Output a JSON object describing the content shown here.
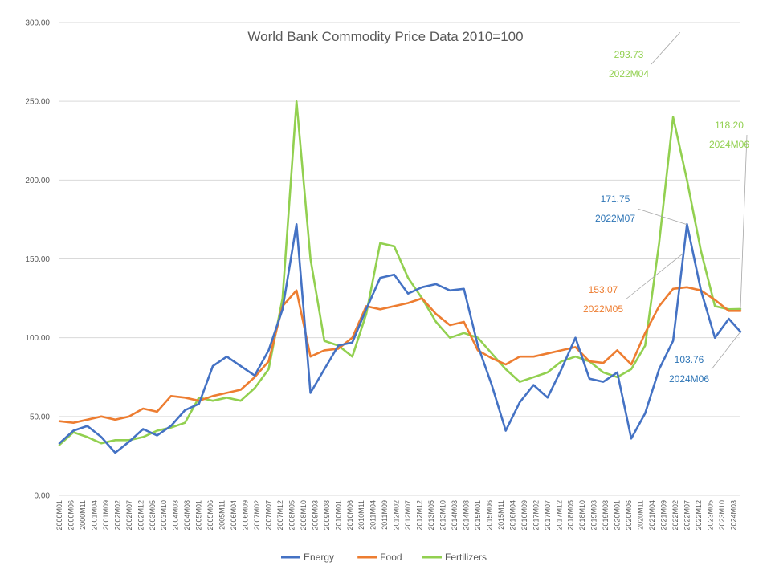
{
  "chart_data": {
    "type": "line",
    "title": "World Bank Commodity Price Data 2010=100",
    "xlabel": "",
    "ylabel": "",
    "ylim": [
      0,
      300
    ],
    "yticks": [
      "0.00",
      "50.00",
      "100.00",
      "150.00",
      "200.00",
      "250.00",
      "300.00"
    ],
    "grid": true,
    "legend_position": "bottom",
    "xtick_labels": [
      "2000M01",
      "2000M06",
      "2000M11",
      "2001M04",
      "2001M09",
      "2002M02",
      "2002M07",
      "2002M12",
      "2003M05",
      "2003M10",
      "2004M03",
      "2004M08",
      "2005M01",
      "2005M06",
      "2005M11",
      "2006M04",
      "2006M09",
      "2007M02",
      "2007M07",
      "2007M12",
      "2008M05",
      "2008M10",
      "2009M03",
      "2009M08",
      "2010M01",
      "2010M06",
      "2010M11",
      "2011M04",
      "2011M09",
      "2012M02",
      "2012M07",
      "2012M12",
      "2013M05",
      "2013M10",
      "2014M03",
      "2014M08",
      "2015M01",
      "2015M06",
      "2015M11",
      "2016M04",
      "2016M09",
      "2017M02",
      "2017M07",
      "2017M12",
      "2018M05",
      "2018M10",
      "2019M03",
      "2019M08",
      "2020M01",
      "2020M06",
      "2020M11",
      "2021M04",
      "2021M09",
      "2022M02",
      "2022M07",
      "2022M12",
      "2023M05",
      "2023M10",
      "2024M03"
    ],
    "x": [
      "2000M01",
      "2000M07",
      "2001M01",
      "2001M07",
      "2002M01",
      "2002M07",
      "2003M01",
      "2003M07",
      "2004M01",
      "2004M07",
      "2005M01",
      "2005M07",
      "2006M01",
      "2006M07",
      "2007M01",
      "2007M07",
      "2008M01",
      "2008M07",
      "2009M01",
      "2009M07",
      "2010M01",
      "2010M07",
      "2011M01",
      "2011M07",
      "2012M01",
      "2012M07",
      "2013M01",
      "2013M07",
      "2014M01",
      "2014M07",
      "2015M01",
      "2015M07",
      "2016M01",
      "2016M07",
      "2017M01",
      "2017M07",
      "2018M01",
      "2018M07",
      "2019M01",
      "2019M07",
      "2020M01",
      "2020M07",
      "2021M01",
      "2021M07",
      "2022M01",
      "2022M07",
      "2023M01",
      "2023M07",
      "2024M01",
      "2024M06"
    ],
    "series": [
      {
        "name": "Energy",
        "color": "#4472C4",
        "values": [
          33,
          41,
          44,
          37,
          27,
          34,
          42,
          38,
          44,
          54,
          58,
          82,
          88,
          82,
          76,
          92,
          118,
          172,
          65,
          80,
          95,
          97,
          118,
          138,
          140,
          128,
          132,
          134,
          130,
          131,
          95,
          70,
          41,
          59,
          70,
          62,
          80,
          100,
          74,
          72,
          78,
          36,
          52,
          80,
          98,
          172,
          130,
          100,
          112,
          103.76
        ]
      },
      {
        "name": "Food",
        "color": "#ED7D31",
        "values": [
          47,
          46,
          48,
          50,
          48,
          50,
          55,
          53,
          63,
          62,
          60,
          63,
          65,
          67,
          75,
          85,
          120,
          130,
          88,
          92,
          93,
          100,
          120,
          118,
          120,
          122,
          125,
          115,
          108,
          110,
          92,
          87,
          83,
          88,
          88,
          90,
          92,
          94,
          85,
          84,
          92,
          83,
          103,
          120,
          131,
          132,
          130,
          124,
          117,
          117
        ]
      },
      {
        "name": "Fertilizers",
        "color": "#92D050",
        "values": [
          32,
          40,
          37,
          33,
          35,
          35,
          37,
          41,
          43,
          46,
          62,
          60,
          62,
          60,
          68,
          80,
          125,
          250,
          150,
          98,
          95,
          88,
          115,
          160,
          158,
          138,
          125,
          110,
          100,
          103,
          100,
          90,
          80,
          72,
          75,
          78,
          85,
          88,
          85,
          78,
          75,
          80,
          95,
          160,
          240,
          200,
          155,
          120,
          118,
          118.2
        ]
      }
    ],
    "annotations": [
      {
        "label": "293.73",
        "date": "2022M04",
        "series": "Fertilizers",
        "value": 293.73,
        "color": "#92D050"
      },
      {
        "label": "118.20",
        "date": "2024M06",
        "series": "Fertilizers",
        "value": 118.2,
        "color": "#92D050"
      },
      {
        "label": "171.75",
        "date": "2022M07",
        "series": "Energy",
        "value": 171.75,
        "color": "#2E75B6"
      },
      {
        "label": "153.07",
        "date": "2022M05",
        "series": "Food",
        "value": 153.07,
        "color": "#ED7D31"
      },
      {
        "label": "103.76",
        "date": "2024M06",
        "series": "Energy",
        "value": 103.76,
        "color": "#2E75B6"
      }
    ]
  }
}
